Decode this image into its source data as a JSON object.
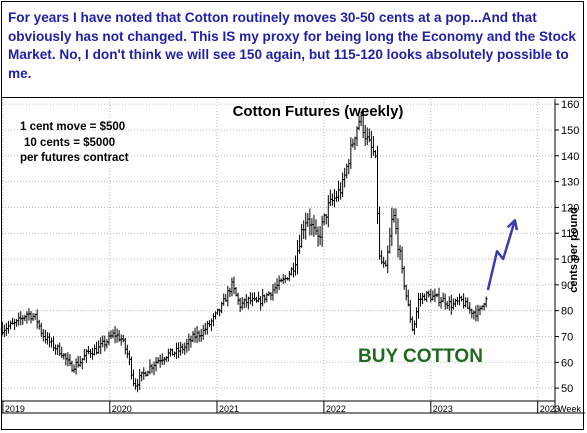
{
  "commentary": "For years I have noted that Cotton routinely moves 30-50 cents at a pop...And that obviously has not changed. This IS my proxy for being long the Economy and the Stock Market. No, I don't think we will see 150 again, but 115-120 looks absolutely possible to me.",
  "colors": {
    "commentary": "#1f1fa8",
    "bars": "#000000",
    "arrow": "#3b3bb0",
    "buy_label": "#1f6a1f"
  },
  "chart_data": {
    "type": "ohlc",
    "title": "Cotton Futures (weekly)",
    "ylabel": "cents per pound",
    "xlabel": "Week",
    "ylim": [
      45,
      162
    ],
    "yticks": [
      50,
      60,
      70,
      80,
      90,
      100,
      110,
      120,
      130,
      140,
      150,
      160
    ],
    "xticks": [
      "2019",
      "2020",
      "2021",
      "2022",
      "2023",
      "2023"
    ],
    "grid": true,
    "annotations": [
      {
        "id": "contract_info",
        "lines": [
          "1 cent move = $500",
          "10 cents = $5000",
          "per futures contract"
        ]
      },
      {
        "id": "buy",
        "text": "BUY COTTON"
      }
    ],
    "projection": {
      "description": "hand-drawn projected path",
      "points": [
        {
          "date": "2023-07-15",
          "value": 88
        },
        {
          "date": "2023-08-15",
          "value": 103
        },
        {
          "date": "2023-09-05",
          "value": 100
        },
        {
          "date": "2023-10-15",
          "value": 115
        }
      ]
    },
    "series": [
      {
        "values": [
          {
            "date": "2018-12-30",
            "close": 73
          },
          {
            "date": "2019-02-15",
            "close": 75
          },
          {
            "date": "2019-03-25",
            "close": 79
          },
          {
            "date": "2019-04-25",
            "close": 77
          },
          {
            "date": "2019-05-15",
            "close": 71
          },
          {
            "date": "2019-06-15",
            "close": 67
          },
          {
            "date": "2019-07-20",
            "close": 64
          },
          {
            "date": "2019-08-20",
            "close": 58
          },
          {
            "date": "2019-09-20",
            "close": 60
          },
          {
            "date": "2019-10-20",
            "close": 64
          },
          {
            "date": "2019-11-20",
            "close": 65
          },
          {
            "date": "2019-12-20",
            "close": 68
          },
          {
            "date": "2020-01-15",
            "close": 71
          },
          {
            "date": "2020-02-10",
            "close": 69
          },
          {
            "date": "2020-03-05",
            "close": 62
          },
          {
            "date": "2020-03-25",
            "close": 51
          },
          {
            "date": "2020-04-15",
            "close": 54
          },
          {
            "date": "2020-05-15",
            "close": 58
          },
          {
            "date": "2020-06-15",
            "close": 61
          },
          {
            "date": "2020-07-15",
            "close": 63
          },
          {
            "date": "2020-08-15",
            "close": 64
          },
          {
            "date": "2020-09-15",
            "close": 66
          },
          {
            "date": "2020-10-15",
            "close": 70
          },
          {
            "date": "2020-11-15",
            "close": 72
          },
          {
            "date": "2020-12-15",
            "close": 76
          },
          {
            "date": "2021-01-15",
            "close": 81
          },
          {
            "date": "2021-02-20",
            "close": 90
          },
          {
            "date": "2021-03-20",
            "close": 82
          },
          {
            "date": "2021-04-20",
            "close": 84
          },
          {
            "date": "2021-05-20",
            "close": 83
          },
          {
            "date": "2021-06-20",
            "close": 86
          },
          {
            "date": "2021-07-20",
            "close": 89
          },
          {
            "date": "2021-08-20",
            "close": 92
          },
          {
            "date": "2021-09-20",
            "close": 97
          },
          {
            "date": "2021-10-15",
            "close": 110
          },
          {
            "date": "2021-11-05",
            "close": 117
          },
          {
            "date": "2021-12-10",
            "close": 107
          },
          {
            "date": "2022-01-15",
            "close": 120
          },
          {
            "date": "2022-02-10",
            "close": 124
          },
          {
            "date": "2022-03-05",
            "close": 128
          },
          {
            "date": "2022-03-25",
            "close": 138
          },
          {
            "date": "2022-04-20",
            "close": 150
          },
          {
            "date": "2022-05-05",
            "close": 155
          },
          {
            "date": "2022-05-25",
            "close": 147
          },
          {
            "date": "2022-06-10",
            "close": 143
          },
          {
            "date": "2022-06-25",
            "close": 140
          },
          {
            "date": "2022-07-10",
            "close": 100
          },
          {
            "date": "2022-08-01",
            "close": 96
          },
          {
            "date": "2022-08-25",
            "close": 118
          },
          {
            "date": "2022-09-10",
            "close": 107
          },
          {
            "date": "2022-09-25",
            "close": 95
          },
          {
            "date": "2022-10-15",
            "close": 82
          },
          {
            "date": "2022-11-01",
            "close": 72
          },
          {
            "date": "2022-11-20",
            "close": 84
          },
          {
            "date": "2022-12-15",
            "close": 86
          },
          {
            "date": "2023-01-15",
            "close": 85
          },
          {
            "date": "2023-02-15",
            "close": 84
          },
          {
            "date": "2023-03-15",
            "close": 82
          },
          {
            "date": "2023-04-15",
            "close": 84
          },
          {
            "date": "2023-05-15",
            "close": 80
          },
          {
            "date": "2023-06-15",
            "close": 79
          },
          {
            "date": "2023-07-10",
            "close": 86
          }
        ]
      }
    ]
  }
}
